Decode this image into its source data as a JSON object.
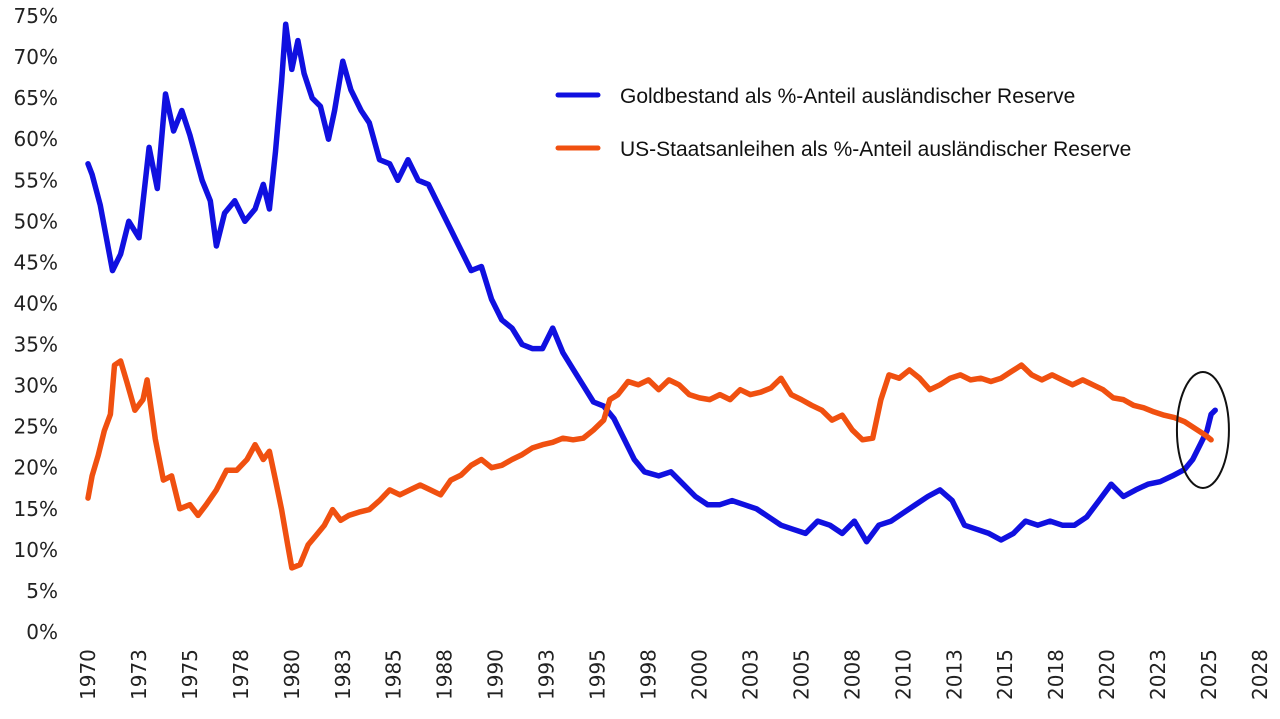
{
  "chart_data": {
    "type": "line",
    "title": "",
    "xlabel": "",
    "ylabel": "",
    "x_range": [
      1970,
      2027.5
    ],
    "ylim": [
      0,
      75
    ],
    "y_ticks": [
      0,
      5,
      10,
      15,
      20,
      25,
      30,
      35,
      40,
      45,
      50,
      55,
      60,
      65,
      70,
      75
    ],
    "y_tick_labels": [
      "0%",
      "5%",
      "10%",
      "15%",
      "20%",
      "25%",
      "30%",
      "35%",
      "40%",
      "45%",
      "50%",
      "55%",
      "60%",
      "65%",
      "70%",
      "75%"
    ],
    "x_ticks": [
      1970,
      1972.5,
      1975,
      1977.5,
      1980,
      1982.5,
      1985,
      1987.5,
      1990,
      1992.5,
      1995,
      1997.5,
      2000,
      2002.5,
      2005,
      2007.5,
      2010,
      2012.5,
      2015,
      2017.5,
      2020,
      2022.5,
      2025,
      2027.5
    ],
    "x_tick_labels": [
      "1970",
      "1973",
      "1975",
      "1978",
      "1980",
      "1983",
      "1985",
      "1988",
      "1990",
      "1993",
      "1995",
      "1998",
      "2000",
      "2003",
      "2005",
      "2008",
      "2010",
      "2013",
      "2015",
      "2018",
      "2020",
      "2023",
      "2025",
      "2028"
    ],
    "grid": false,
    "legend_position": "top-right",
    "series": [
      {
        "name": "Goldbestand als %-Anteil ausländischer Reserve",
        "color": "#1010e0",
        "points": [
          [
            1970.0,
            57
          ],
          [
            1970.2,
            55.7
          ],
          [
            1970.6,
            52
          ],
          [
            1971.2,
            44
          ],
          [
            1971.6,
            46
          ],
          [
            1972.0,
            50
          ],
          [
            1972.5,
            48
          ],
          [
            1973.0,
            59
          ],
          [
            1973.4,
            54
          ],
          [
            1973.8,
            65.5
          ],
          [
            1974.2,
            61
          ],
          [
            1974.6,
            63.5
          ],
          [
            1975.0,
            60.5
          ],
          [
            1975.6,
            55
          ],
          [
            1976.0,
            52.5
          ],
          [
            1976.3,
            47
          ],
          [
            1976.7,
            51
          ],
          [
            1977.2,
            52.5
          ],
          [
            1977.7,
            50
          ],
          [
            1978.2,
            51.5
          ],
          [
            1978.6,
            54.5
          ],
          [
            1978.9,
            51.5
          ],
          [
            1979.2,
            58.5
          ],
          [
            1979.5,
            67
          ],
          [
            1979.7,
            74
          ],
          [
            1980.0,
            68.5
          ],
          [
            1980.3,
            72
          ],
          [
            1980.6,
            68
          ],
          [
            1981.0,
            65
          ],
          [
            1981.4,
            64
          ],
          [
            1981.8,
            60
          ],
          [
            1982.1,
            63.5
          ],
          [
            1982.5,
            69.5
          ],
          [
            1982.9,
            66
          ],
          [
            1983.4,
            63.5
          ],
          [
            1983.8,
            62
          ],
          [
            1984.3,
            57.5
          ],
          [
            1984.8,
            57
          ],
          [
            1985.2,
            55
          ],
          [
            1985.7,
            57.5
          ],
          [
            1986.2,
            55
          ],
          [
            1986.7,
            54.5
          ],
          [
            1987.3,
            51.5
          ],
          [
            1987.8,
            49
          ],
          [
            1988.3,
            46.5
          ],
          [
            1988.8,
            44
          ],
          [
            1989.3,
            44.5
          ],
          [
            1989.8,
            40.5
          ],
          [
            1990.3,
            38
          ],
          [
            1990.8,
            37
          ],
          [
            1991.3,
            35
          ],
          [
            1991.8,
            34.5
          ],
          [
            1992.3,
            34.5
          ],
          [
            1992.8,
            37
          ],
          [
            1993.3,
            34
          ],
          [
            1993.8,
            32
          ],
          [
            1994.3,
            30
          ],
          [
            1994.8,
            28
          ],
          [
            1995.3,
            27.5
          ],
          [
            1995.8,
            26
          ],
          [
            1996.3,
            23.5
          ],
          [
            1996.8,
            21
          ],
          [
            1997.3,
            19.5
          ],
          [
            1998.0,
            19
          ],
          [
            1998.6,
            19.5
          ],
          [
            1999.2,
            18
          ],
          [
            1999.8,
            16.5
          ],
          [
            2000.4,
            15.5
          ],
          [
            2001.0,
            15.5
          ],
          [
            2001.6,
            16
          ],
          [
            2002.2,
            15.5
          ],
          [
            2002.8,
            15
          ],
          [
            2003.4,
            14
          ],
          [
            2004.0,
            13
          ],
          [
            2004.6,
            12.5
          ],
          [
            2005.2,
            12
          ],
          [
            2005.8,
            13.5
          ],
          [
            2006.4,
            13
          ],
          [
            2007.0,
            12
          ],
          [
            2007.6,
            13.5
          ],
          [
            2008.2,
            11
          ],
          [
            2008.8,
            13
          ],
          [
            2009.4,
            13.5
          ],
          [
            2010.0,
            14.5
          ],
          [
            2010.6,
            15.5
          ],
          [
            2011.2,
            16.5
          ],
          [
            2011.8,
            17.3
          ],
          [
            2012.4,
            16
          ],
          [
            2013.0,
            13
          ],
          [
            2013.6,
            12.5
          ],
          [
            2014.2,
            12
          ],
          [
            2014.8,
            11.2
          ],
          [
            2015.4,
            12
          ],
          [
            2016.0,
            13.5
          ],
          [
            2016.6,
            13
          ],
          [
            2017.2,
            13.5
          ],
          [
            2017.8,
            13
          ],
          [
            2018.4,
            13
          ],
          [
            2019.0,
            14
          ],
          [
            2019.6,
            16
          ],
          [
            2020.2,
            18
          ],
          [
            2020.8,
            16.5
          ],
          [
            2021.4,
            17.3
          ],
          [
            2022.0,
            18
          ],
          [
            2022.6,
            18.3
          ],
          [
            2023.2,
            19
          ],
          [
            2023.8,
            19.8
          ],
          [
            2024.2,
            21
          ],
          [
            2024.6,
            23
          ],
          [
            2024.9,
            24.5
          ],
          [
            2025.1,
            26.5
          ],
          [
            2025.3,
            27
          ]
        ]
      },
      {
        "name": "US-Staatsanleihen als %-Anteil ausländischer Reserve",
        "color": "#f05010",
        "points": [
          [
            1970.0,
            16.3
          ],
          [
            1970.2,
            19
          ],
          [
            1970.5,
            21.5
          ],
          [
            1970.8,
            24.5
          ],
          [
            1971.1,
            26.5
          ],
          [
            1971.3,
            32.5
          ],
          [
            1971.6,
            33
          ],
          [
            1971.9,
            30.5
          ],
          [
            1972.3,
            27
          ],
          [
            1972.7,
            28.3
          ],
          [
            1972.9,
            30.7
          ],
          [
            1973.3,
            23.5
          ],
          [
            1973.7,
            18.5
          ],
          [
            1974.1,
            19
          ],
          [
            1974.5,
            15
          ],
          [
            1975.0,
            15.5
          ],
          [
            1975.4,
            14.2
          ],
          [
            1975.8,
            15.5
          ],
          [
            1976.3,
            17.3
          ],
          [
            1976.8,
            19.7
          ],
          [
            1977.3,
            19.7
          ],
          [
            1977.8,
            21
          ],
          [
            1978.2,
            22.8
          ],
          [
            1978.6,
            21
          ],
          [
            1978.9,
            22
          ],
          [
            1979.2,
            18.5
          ],
          [
            1979.5,
            14.9
          ],
          [
            1979.8,
            10.6
          ],
          [
            1980.0,
            7.8
          ],
          [
            1980.4,
            8.2
          ],
          [
            1980.8,
            10.6
          ],
          [
            1981.2,
            11.8
          ],
          [
            1981.6,
            13
          ],
          [
            1982.0,
            14.9
          ],
          [
            1982.4,
            13.6
          ],
          [
            1982.8,
            14.2
          ],
          [
            1983.3,
            14.6
          ],
          [
            1983.8,
            14.9
          ],
          [
            1984.3,
            16
          ],
          [
            1984.8,
            17.3
          ],
          [
            1985.3,
            16.7
          ],
          [
            1985.8,
            17.3
          ],
          [
            1986.3,
            17.9
          ],
          [
            1986.8,
            17.3
          ],
          [
            1987.3,
            16.7
          ],
          [
            1987.8,
            18.5
          ],
          [
            1988.3,
            19.1
          ],
          [
            1988.8,
            20.3
          ],
          [
            1989.3,
            21
          ],
          [
            1989.8,
            20
          ],
          [
            1990.3,
            20.3
          ],
          [
            1990.8,
            21
          ],
          [
            1991.3,
            21.6
          ],
          [
            1991.8,
            22.4
          ],
          [
            1992.3,
            22.8
          ],
          [
            1992.8,
            23.1
          ],
          [
            1993.3,
            23.6
          ],
          [
            1993.8,
            23.4
          ],
          [
            1994.3,
            23.6
          ],
          [
            1994.8,
            24.6
          ],
          [
            1995.3,
            25.8
          ],
          [
            1995.6,
            28.3
          ],
          [
            1996.0,
            28.9
          ],
          [
            1996.5,
            30.5
          ],
          [
            1997.0,
            30.1
          ],
          [
            1997.5,
            30.7
          ],
          [
            1998.0,
            29.5
          ],
          [
            1998.5,
            30.7
          ],
          [
            1999.0,
            30.1
          ],
          [
            1999.5,
            28.9
          ],
          [
            2000.0,
            28.5
          ],
          [
            2000.5,
            28.3
          ],
          [
            2001.0,
            28.9
          ],
          [
            2001.5,
            28.3
          ],
          [
            2002.0,
            29.5
          ],
          [
            2002.5,
            28.9
          ],
          [
            2003.0,
            29.2
          ],
          [
            2003.5,
            29.7
          ],
          [
            2004.0,
            30.9
          ],
          [
            2004.5,
            28.9
          ],
          [
            2005.0,
            28.3
          ],
          [
            2005.5,
            27.6
          ],
          [
            2006.0,
            27
          ],
          [
            2006.5,
            25.8
          ],
          [
            2007.0,
            26.4
          ],
          [
            2007.5,
            24.6
          ],
          [
            2008.0,
            23.4
          ],
          [
            2008.5,
            23.6
          ],
          [
            2008.9,
            28.3
          ],
          [
            2009.3,
            31.3
          ],
          [
            2009.8,
            30.9
          ],
          [
            2010.3,
            31.9
          ],
          [
            2010.8,
            30.9
          ],
          [
            2011.3,
            29.5
          ],
          [
            2011.8,
            30.1
          ],
          [
            2012.3,
            30.9
          ],
          [
            2012.8,
            31.3
          ],
          [
            2013.3,
            30.7
          ],
          [
            2013.8,
            30.9
          ],
          [
            2014.3,
            30.5
          ],
          [
            2014.8,
            30.9
          ],
          [
            2015.3,
            31.7
          ],
          [
            2015.8,
            32.5
          ],
          [
            2016.3,
            31.3
          ],
          [
            2016.8,
            30.7
          ],
          [
            2017.3,
            31.3
          ],
          [
            2017.8,
            30.7
          ],
          [
            2018.3,
            30.1
          ],
          [
            2018.8,
            30.7
          ],
          [
            2019.3,
            30.1
          ],
          [
            2019.8,
            29.5
          ],
          [
            2020.3,
            28.5
          ],
          [
            2020.8,
            28.3
          ],
          [
            2021.3,
            27.6
          ],
          [
            2021.8,
            27.3
          ],
          [
            2022.3,
            26.8
          ],
          [
            2022.8,
            26.4
          ],
          [
            2023.3,
            26.1
          ],
          [
            2023.8,
            25.6
          ],
          [
            2024.3,
            24.8
          ],
          [
            2024.8,
            24
          ],
          [
            2025.1,
            23.4
          ]
        ]
      }
    ],
    "annotations": [
      {
        "type": "ellipse",
        "center_year": 2024.7,
        "center_value": 24.6,
        "color": "#111111",
        "note": "highlights crossover of gold and US treasuries shares"
      }
    ]
  }
}
